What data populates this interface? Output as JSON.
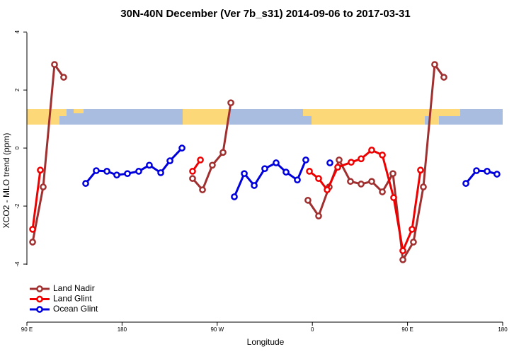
{
  "chart_data": {
    "type": "line",
    "title": "30N-40N December (Ver 7b_s31)   2014-09-06 to 2017-03-31",
    "x_label": "Longitude",
    "y_label": "XCO2 - MLO trend (ppm)",
    "xlim": [
      90,
      540
    ],
    "ylim": [
      -6,
      4.2
    ],
    "xticks": [
      {
        "value": 90,
        "label": "90 E"
      },
      {
        "value": 180,
        "label": "180"
      },
      {
        "value": 270,
        "label": "90 W"
      },
      {
        "value": 360,
        "label": "0"
      },
      {
        "value": 450,
        "label": "90 E"
      },
      {
        "value": 540,
        "label": "180"
      }
    ],
    "yticks": [
      -4,
      -2,
      0,
      2,
      4
    ],
    "grid": false,
    "legend": "bottomleft",
    "series": [
      {
        "name": "Land Nadir",
        "color": "#a03030",
        "x": [
          95.4,
          105.4,
          116.1,
          124.8,
          null,
          246.7,
          256.1,
          265.4,
          275.5,
          282.9,
          null,
          355.8,
          365.9,
          375.9,
          385.3,
          396.0,
          406.1,
          416.1,
          426.2,
          436.2,
          445.6,
          455.6,
          465.0,
          475.7,
          484.4
        ],
        "values": [
          -3.24,
          -1.34,
          2.88,
          2.44,
          null,
          -1.05,
          -1.44,
          -0.59,
          -0.15,
          1.56,
          null,
          -1.8,
          -2.34,
          -1.34,
          -0.41,
          -1.15,
          -1.24,
          -1.15,
          -1.51,
          -0.88,
          -3.85,
          -3.24,
          -1.34,
          2.88,
          2.44
        ]
      },
      {
        "name": "Land Glint",
        "color": "#ee0000",
        "x": [
          95.4,
          102.7,
          null,
          246.7,
          254.1,
          null,
          357.2,
          365.9,
          374.0,
          384.0,
          396.7,
          406.1,
          416.1,
          426.2,
          436.9,
          445.6,
          454.3,
          462.3
        ],
        "values": [
          -2.8,
          -0.76,
          null,
          -0.8,
          -0.41,
          null,
          -0.8,
          -1.05,
          -1.44,
          -0.66,
          -0.49,
          -0.37,
          -0.07,
          -0.24,
          -1.71,
          -3.54,
          -2.8,
          -0.76
        ]
      },
      {
        "name": "Ocean Glint",
        "color": "#0000dd",
        "x": [
          145.6,
          155.6,
          165.7,
          175.0,
          185.1,
          195.8,
          205.8,
          216.6,
          225.3,
          236.7,
          null,
          286.2,
          295.6,
          305.0,
          315.0,
          325.7,
          335.1,
          345.8,
          353.8,
          null,
          376.6,
          null,
          505.2,
          515.2,
          525.3,
          534.6
        ],
        "values": [
          -1.22,
          -0.78,
          -0.8,
          -0.93,
          -0.88,
          -0.8,
          -0.59,
          -0.85,
          -0.44,
          0.0,
          null,
          -1.68,
          -0.88,
          -1.29,
          -0.71,
          -0.51,
          -0.83,
          -1.1,
          -0.41,
          null,
          -0.51,
          null,
          -1.22,
          -0.78,
          -0.8,
          -0.9
        ]
      }
    ]
  }
}
